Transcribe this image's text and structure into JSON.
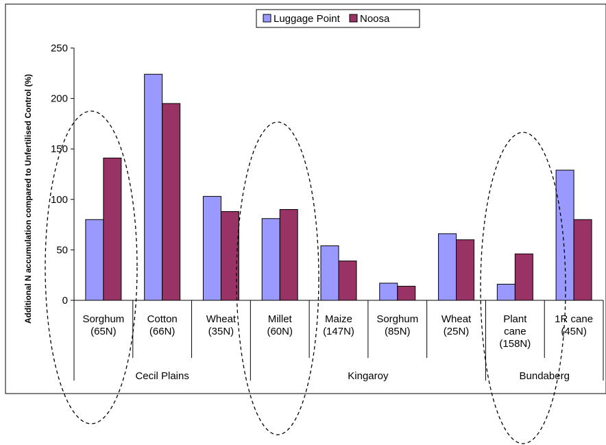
{
  "chart_data": {
    "type": "bar",
    "title": "",
    "xlabel": "",
    "ylabel": "Additional N accumulation compared to Unfertilised Control (%)",
    "ylim": [
      0,
      250
    ],
    "yticks": [
      0,
      50,
      100,
      150,
      200,
      250
    ],
    "grid": false,
    "legend_position": "top-center",
    "categories": [
      [
        "Sorghum",
        "(65N)"
      ],
      [
        "Cotton",
        "(66N)"
      ],
      [
        "Wheat",
        "(35N)"
      ],
      [
        "Millet",
        "(60N)"
      ],
      [
        "Maize",
        "(147N)"
      ],
      [
        "Sorghum",
        "(85N)"
      ],
      [
        "Wheat",
        "(25N)"
      ],
      [
        "Plant",
        "cane",
        "(158N)"
      ],
      [
        "1R cane",
        "(45N)"
      ]
    ],
    "groups": [
      {
        "label": "Cecil Plains",
        "span": [
          0,
          3
        ]
      },
      {
        "label": "Kingaroy",
        "span": [
          3,
          7
        ]
      },
      {
        "label": "Bundaberg",
        "span": [
          7,
          9
        ]
      }
    ],
    "series": [
      {
        "name": "Luggage Point",
        "color": "#9999ff",
        "values": [
          80,
          224,
          103,
          81,
          54,
          17,
          66,
          16,
          129
        ]
      },
      {
        "name": "Noosa",
        "color": "#993366",
        "values": [
          141,
          195,
          88,
          90,
          39,
          14,
          60,
          46,
          80
        ]
      }
    ],
    "highlight_ellipses_around_categories": [
      0,
      3,
      7
    ]
  }
}
